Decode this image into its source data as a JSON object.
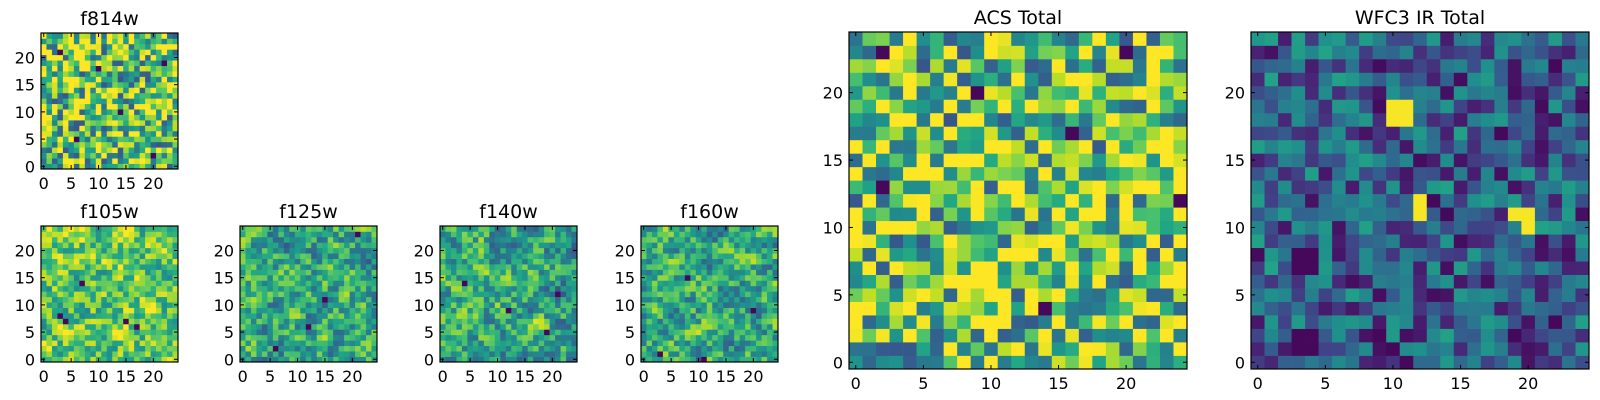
{
  "figure": {
    "title": "",
    "colormap": "viridis"
  },
  "chart_data": [
    {
      "type": "heatmap",
      "title": "f814w",
      "grid": [
        25,
        25
      ],
      "xlim": [
        0,
        24
      ],
      "ylim": [
        0,
        24
      ],
      "xticks": [
        "0",
        "5",
        "10",
        "15",
        "20"
      ],
      "yticks": [
        "0",
        "5",
        "10",
        "15",
        "20"
      ],
      "value_range": [
        0,
        1
      ],
      "texture": "fine",
      "seed": 11,
      "bias": 0.72,
      "dark_cells": [
        [
          3,
          21
        ],
        [
          6,
          5
        ],
        [
          14,
          10
        ],
        [
          20,
          2
        ],
        [
          22,
          19
        ],
        [
          10,
          18
        ]
      ],
      "bright_cells": []
    },
    {
      "type": "heatmap",
      "title": "f105w",
      "grid": [
        25,
        25
      ],
      "xlim": [
        0,
        24
      ],
      "ylim": [
        0,
        24
      ],
      "xticks": [
        "0",
        "5",
        "10",
        "15",
        "20"
      ],
      "yticks": [
        "0",
        "5",
        "10",
        "15",
        "20"
      ],
      "value_range": [
        0,
        1
      ],
      "texture": "smooth",
      "seed": 23,
      "bias": 0.75,
      "dark_cells": [
        [
          4,
          7
        ],
        [
          3,
          8
        ],
        [
          15,
          7
        ],
        [
          17,
          6
        ],
        [
          7,
          14
        ]
      ],
      "bright_cells": []
    },
    {
      "type": "heatmap",
      "title": "f125w",
      "grid": [
        25,
        25
      ],
      "xlim": [
        0,
        24
      ],
      "ylim": [
        0,
        24
      ],
      "xticks": [
        "0",
        "5",
        "10",
        "15",
        "20"
      ],
      "yticks": [
        "0",
        "5",
        "10",
        "15",
        "20"
      ],
      "value_range": [
        0,
        1
      ],
      "texture": "smooth",
      "seed": 37,
      "bias": 0.6,
      "dark_cells": [
        [
          15,
          11
        ],
        [
          21,
          23
        ],
        [
          12,
          6
        ],
        [
          6,
          2
        ]
      ],
      "bright_cells": []
    },
    {
      "type": "heatmap",
      "title": "f140w",
      "grid": [
        25,
        25
      ],
      "xlim": [
        0,
        24
      ],
      "ylim": [
        0,
        24
      ],
      "xticks": [
        "0",
        "5",
        "10",
        "15",
        "20"
      ],
      "yticks": [
        "0",
        "5",
        "10",
        "15",
        "20"
      ],
      "value_range": [
        0,
        1
      ],
      "texture": "smooth",
      "seed": 53,
      "bias": 0.6,
      "dark_cells": [
        [
          12,
          9
        ],
        [
          19,
          5
        ],
        [
          4,
          14
        ],
        [
          21,
          12
        ]
      ],
      "bright_cells": []
    },
    {
      "type": "heatmap",
      "title": "f160w",
      "grid": [
        25,
        25
      ],
      "xlim": [
        0,
        24
      ],
      "ylim": [
        0,
        24
      ],
      "xticks": [
        "0",
        "5",
        "10",
        "15",
        "20"
      ],
      "yticks": [
        "0",
        "5",
        "10",
        "15",
        "20"
      ],
      "value_range": [
        0,
        1
      ],
      "texture": "smooth",
      "seed": 71,
      "bias": 0.6,
      "dark_cells": [
        [
          11,
          0
        ],
        [
          3,
          1
        ],
        [
          8,
          15
        ],
        [
          20,
          9
        ]
      ],
      "bright_cells": []
    },
    {
      "type": "heatmap",
      "title": "ACS Total",
      "grid": [
        25,
        25
      ],
      "xlim": [
        0,
        24
      ],
      "ylim": [
        0,
        24
      ],
      "xticks": [
        "0",
        "5",
        "10",
        "15",
        "20"
      ],
      "yticks": [
        "0",
        "5",
        "10",
        "15",
        "20"
      ],
      "value_range": [
        0,
        1
      ],
      "texture": "fine",
      "seed": 97,
      "bias": 0.72,
      "dark_cells": [
        [
          2,
          23
        ],
        [
          20,
          23
        ],
        [
          9,
          20
        ],
        [
          16,
          17
        ],
        [
          2,
          13
        ],
        [
          24,
          12
        ],
        [
          14,
          4
        ]
      ],
      "bright_cells": []
    },
    {
      "type": "heatmap",
      "title": "WFC3 IR Total",
      "grid": [
        25,
        25
      ],
      "xlim": [
        0,
        24
      ],
      "ylim": [
        0,
        24
      ],
      "xticks": [
        "0",
        "5",
        "10",
        "15",
        "20"
      ],
      "yticks": [
        "0",
        "5",
        "10",
        "15",
        "20"
      ],
      "value_range": [
        0,
        1
      ],
      "texture": "fine",
      "seed": 131,
      "bias": 0.3,
      "dark_cells": [
        [
          3,
          7
        ],
        [
          4,
          7
        ],
        [
          3,
          8
        ],
        [
          4,
          8
        ],
        [
          3,
          1
        ],
        [
          4,
          1
        ],
        [
          3,
          2
        ],
        [
          4,
          2
        ],
        [
          10,
          1
        ],
        [
          11,
          0
        ],
        [
          14,
          11
        ]
      ],
      "bright_cells": [
        [
          10,
          19
        ],
        [
          11,
          19
        ],
        [
          10,
          18
        ],
        [
          11,
          18
        ],
        [
          12,
          12
        ],
        [
          12,
          11
        ],
        [
          19,
          11
        ],
        [
          20,
          11
        ],
        [
          20,
          10
        ]
      ]
    }
  ]
}
